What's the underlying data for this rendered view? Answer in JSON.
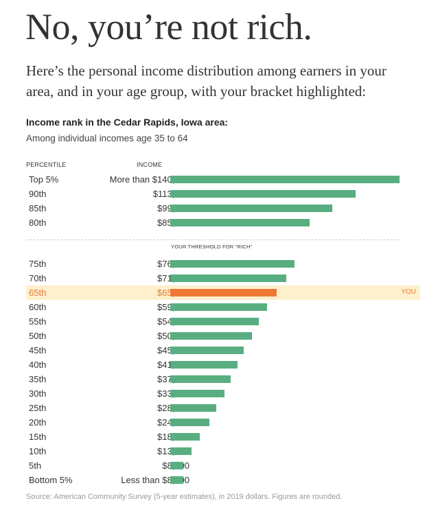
{
  "header": {
    "title": "No, you’re not rich.",
    "intro": "Here’s the personal income distribution among earners in your area, and in your age group, with your bracket highlighted:"
  },
  "chart_data": {
    "type": "bar",
    "orientation": "horizontal",
    "title": "Income rank in the Cedar Rapids, Iowa area:",
    "subtitle": "Among individual incomes age 35 to 64",
    "column_headers": {
      "percentile": "PERCENTILE",
      "income": "INCOME"
    },
    "threshold_label": "YOUR THRESHOLD FOR \"RICH\"",
    "highlight_label": "YOU",
    "colors": {
      "bar": "#58ae80",
      "highlight_bar": "#ec7a36",
      "highlight_band": "#fdf0cc"
    },
    "rows": [
      {
        "percentile": "Top 5%",
        "income_label": "More than $140,000",
        "value": 140000
      },
      {
        "percentile": "90th",
        "income_label": "$113,000",
        "value": 113000
      },
      {
        "percentile": "85th",
        "income_label": "$99,000",
        "value": 99000
      },
      {
        "percentile": "80th",
        "income_label": "$85,000",
        "value": 85000
      },
      {
        "percentile": "75th",
        "income_label": "$76,000",
        "value": 76000
      },
      {
        "percentile": "70th",
        "income_label": "$71,000",
        "value": 71000
      },
      {
        "percentile": "65th",
        "income_label": "$65,000",
        "value": 65000,
        "highlight": true
      },
      {
        "percentile": "60th",
        "income_label": "$59,000",
        "value": 59000
      },
      {
        "percentile": "55th",
        "income_label": "$54,000",
        "value": 54000
      },
      {
        "percentile": "50th",
        "income_label": "$50,000",
        "value": 50000
      },
      {
        "percentile": "45th",
        "income_label": "$45,000",
        "value": 45000
      },
      {
        "percentile": "40th",
        "income_label": "$41,000",
        "value": 41000
      },
      {
        "percentile": "35th",
        "income_label": "$37,000",
        "value": 37000
      },
      {
        "percentile": "30th",
        "income_label": "$33,000",
        "value": 33000
      },
      {
        "percentile": "25th",
        "income_label": "$28,000",
        "value": 28000
      },
      {
        "percentile": "20th",
        "income_label": "$24,000",
        "value": 24000
      },
      {
        "percentile": "15th",
        "income_label": "$18,000",
        "value": 18000
      },
      {
        "percentile": "10th",
        "income_label": "$13,000",
        "value": 13000
      },
      {
        "percentile": "5th",
        "income_label": "$8,000",
        "value": 8000
      },
      {
        "percentile": "Bottom 5%",
        "income_label": "Less than $8,000",
        "value": 8000
      }
    ],
    "threshold_after_index": 3,
    "source": "Source: American Community Survey (5-year estimates), in 2019 dollars. Figures are rounded."
  }
}
